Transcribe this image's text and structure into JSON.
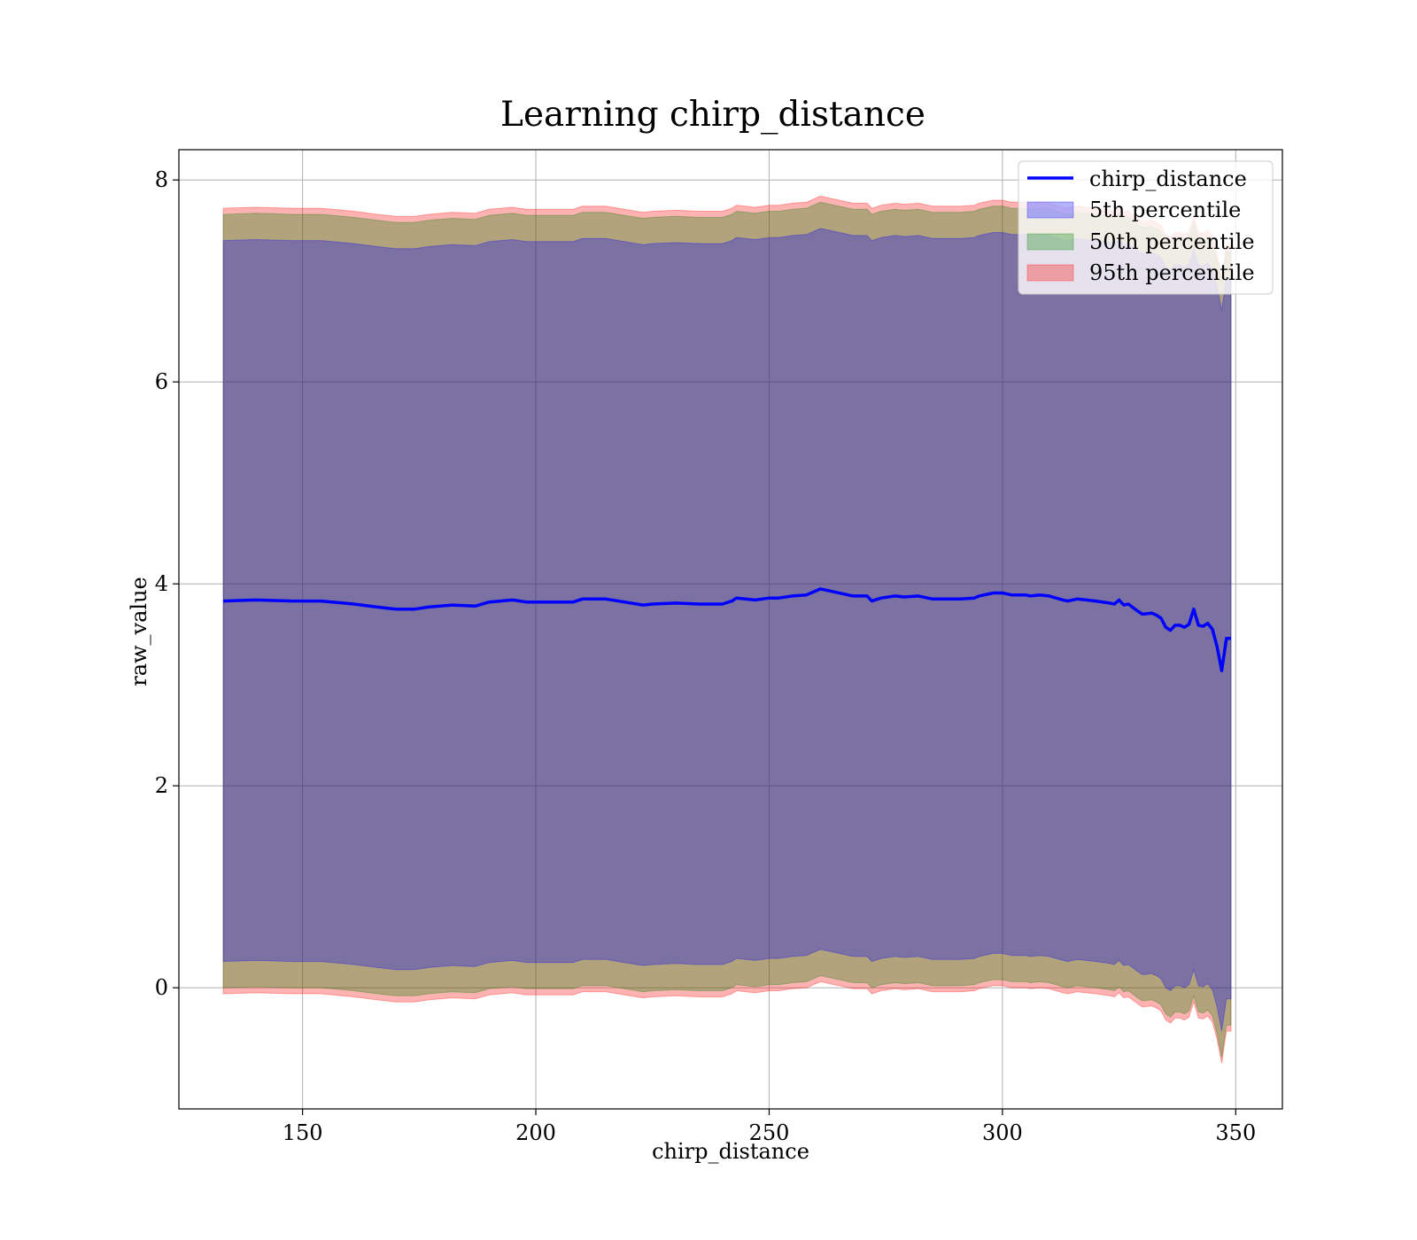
{
  "chart_data": {
    "type": "area",
    "title": "Learning chirp_distance",
    "xlabel": "chirp_distance",
    "ylabel": "raw_value",
    "xlim": [
      123.5,
      360
    ],
    "ylim": [
      -1.2,
      8.3
    ],
    "xticks": [
      150,
      200,
      250,
      300,
      350
    ],
    "yticks": [
      0,
      2,
      4,
      6,
      8
    ],
    "xtick_labels": [
      "150",
      "200",
      "250",
      "300",
      "350"
    ],
    "ytick_labels": [
      "0",
      "2",
      "4",
      "6",
      "8"
    ],
    "grid": true,
    "legend_position": "top-right",
    "x": [
      133,
      140,
      148,
      154,
      161,
      166,
      170,
      174,
      177,
      182,
      187,
      190,
      195,
      198,
      203,
      208,
      210,
      215,
      219,
      223,
      225,
      230,
      235,
      240,
      242,
      243,
      247,
      250,
      252,
      255,
      258,
      261,
      264,
      268,
      271,
      272,
      274,
      277,
      279,
      282,
      285,
      288,
      291,
      294,
      295,
      298,
      300,
      302,
      305,
      306,
      308,
      310,
      313,
      314,
      316,
      318,
      320,
      323,
      324,
      325,
      326,
      327,
      329,
      330,
      332,
      333,
      334,
      335,
      336,
      337,
      338,
      339,
      340,
      341,
      342,
      343,
      344,
      345,
      346,
      347,
      348,
      349
    ],
    "series": [
      {
        "name": "chirp_distance",
        "values": [
          3.83,
          3.84,
          3.83,
          3.83,
          3.8,
          3.77,
          3.75,
          3.75,
          3.77,
          3.79,
          3.78,
          3.82,
          3.84,
          3.82,
          3.82,
          3.82,
          3.85,
          3.85,
          3.82,
          3.79,
          3.8,
          3.81,
          3.8,
          3.8,
          3.83,
          3.86,
          3.84,
          3.86,
          3.86,
          3.88,
          3.89,
          3.95,
          3.92,
          3.88,
          3.88,
          3.83,
          3.86,
          3.88,
          3.87,
          3.88,
          3.85,
          3.85,
          3.85,
          3.86,
          3.88,
          3.91,
          3.91,
          3.89,
          3.89,
          3.88,
          3.89,
          3.88,
          3.84,
          3.83,
          3.85,
          3.84,
          3.83,
          3.81,
          3.8,
          3.84,
          3.79,
          3.8,
          3.73,
          3.7,
          3.71,
          3.69,
          3.66,
          3.57,
          3.54,
          3.59,
          3.59,
          3.57,
          3.6,
          3.75,
          3.59,
          3.58,
          3.61,
          3.55,
          3.38,
          3.14,
          3.46,
          3.46
        ]
      }
    ],
    "bands": [
      {
        "name": "5th percentile",
        "color": "#0000ff",
        "lower": [
          0.26,
          0.27,
          0.26,
          0.26,
          0.23,
          0.2,
          0.18,
          0.18,
          0.2,
          0.22,
          0.21,
          0.25,
          0.27,
          0.25,
          0.25,
          0.25,
          0.28,
          0.28,
          0.25,
          0.22,
          0.23,
          0.24,
          0.23,
          0.23,
          0.26,
          0.29,
          0.27,
          0.29,
          0.29,
          0.31,
          0.32,
          0.38,
          0.35,
          0.31,
          0.31,
          0.26,
          0.29,
          0.31,
          0.3,
          0.31,
          0.28,
          0.28,
          0.28,
          0.29,
          0.31,
          0.34,
          0.34,
          0.32,
          0.32,
          0.31,
          0.32,
          0.31,
          0.27,
          0.26,
          0.28,
          0.27,
          0.26,
          0.24,
          0.23,
          0.27,
          0.22,
          0.23,
          0.16,
          0.13,
          0.14,
          0.12,
          0.09,
          0.0,
          -0.03,
          0.02,
          0.02,
          0.0,
          0.03,
          0.18,
          0.02,
          0.01,
          0.04,
          -0.02,
          -0.19,
          -0.43,
          -0.11,
          -0.11
        ],
        "upper": [
          7.4,
          7.41,
          7.4,
          7.4,
          7.37,
          7.34,
          7.32,
          7.32,
          7.34,
          7.36,
          7.35,
          7.39,
          7.41,
          7.39,
          7.39,
          7.39,
          7.42,
          7.42,
          7.39,
          7.36,
          7.37,
          7.38,
          7.37,
          7.37,
          7.4,
          7.43,
          7.41,
          7.43,
          7.43,
          7.45,
          7.46,
          7.52,
          7.49,
          7.45,
          7.45,
          7.4,
          7.43,
          7.45,
          7.44,
          7.45,
          7.42,
          7.42,
          7.42,
          7.43,
          7.45,
          7.48,
          7.48,
          7.46,
          7.46,
          7.45,
          7.46,
          7.45,
          7.41,
          7.4,
          7.42,
          7.41,
          7.4,
          7.38,
          7.37,
          7.41,
          7.36,
          7.37,
          7.3,
          7.27,
          7.28,
          7.26,
          7.23,
          7.14,
          7.11,
          7.16,
          7.16,
          7.14,
          7.17,
          7.32,
          7.16,
          7.15,
          7.18,
          7.12,
          6.95,
          6.71,
          7.03,
          7.03
        ]
      },
      {
        "name": "50th percentile",
        "color": "#008000",
        "lower": [
          0.0,
          0.01,
          0.0,
          0.0,
          -0.03,
          -0.06,
          -0.08,
          -0.08,
          -0.06,
          -0.04,
          -0.05,
          -0.01,
          0.01,
          -0.01,
          -0.01,
          -0.01,
          0.02,
          0.02,
          -0.01,
          -0.04,
          -0.03,
          -0.02,
          -0.03,
          -0.03,
          0.0,
          0.03,
          0.01,
          0.03,
          0.03,
          0.05,
          0.06,
          0.12,
          0.09,
          0.05,
          0.05,
          0.0,
          0.03,
          0.05,
          0.04,
          0.05,
          0.02,
          0.02,
          0.02,
          0.03,
          0.05,
          0.08,
          0.08,
          0.06,
          0.06,
          0.05,
          0.06,
          0.05,
          0.01,
          0.0,
          0.02,
          0.01,
          0.0,
          -0.02,
          -0.03,
          0.01,
          -0.04,
          -0.03,
          -0.1,
          -0.13,
          -0.12,
          -0.14,
          -0.17,
          -0.26,
          -0.29,
          -0.24,
          -0.24,
          -0.26,
          -0.23,
          -0.08,
          -0.24,
          -0.25,
          -0.22,
          -0.28,
          -0.45,
          -0.69,
          -0.37,
          -0.37
        ],
        "upper": [
          7.66,
          7.67,
          7.66,
          7.66,
          7.63,
          7.6,
          7.58,
          7.58,
          7.6,
          7.62,
          7.61,
          7.65,
          7.67,
          7.65,
          7.65,
          7.65,
          7.68,
          7.68,
          7.65,
          7.62,
          7.63,
          7.64,
          7.63,
          7.63,
          7.66,
          7.69,
          7.67,
          7.69,
          7.69,
          7.71,
          7.72,
          7.78,
          7.75,
          7.71,
          7.71,
          7.66,
          7.69,
          7.71,
          7.7,
          7.71,
          7.68,
          7.68,
          7.68,
          7.69,
          7.71,
          7.74,
          7.74,
          7.72,
          7.72,
          7.71,
          7.72,
          7.71,
          7.67,
          7.66,
          7.68,
          7.67,
          7.66,
          7.64,
          7.63,
          7.67,
          7.62,
          7.63,
          7.56,
          7.53,
          7.54,
          7.52,
          7.49,
          7.4,
          7.37,
          7.42,
          7.42,
          7.4,
          7.43,
          7.58,
          7.42,
          7.41,
          7.44,
          7.38,
          7.21,
          6.97,
          7.29,
          7.29
        ]
      },
      {
        "name": "95th percentile",
        "color": "#ff0000",
        "lower": [
          -0.06,
          -0.05,
          -0.06,
          -0.06,
          -0.09,
          -0.12,
          -0.14,
          -0.14,
          -0.12,
          -0.1,
          -0.11,
          -0.07,
          -0.05,
          -0.07,
          -0.07,
          -0.07,
          -0.04,
          -0.04,
          -0.07,
          -0.1,
          -0.09,
          -0.08,
          -0.09,
          -0.09,
          -0.06,
          -0.03,
          -0.05,
          -0.03,
          -0.03,
          -0.01,
          0.0,
          0.06,
          0.03,
          -0.01,
          -0.01,
          -0.06,
          -0.03,
          -0.01,
          -0.02,
          -0.01,
          -0.04,
          -0.04,
          -0.04,
          -0.03,
          -0.01,
          0.02,
          0.02,
          0.0,
          0.0,
          -0.01,
          0.0,
          -0.01,
          -0.05,
          -0.06,
          -0.04,
          -0.05,
          -0.06,
          -0.08,
          -0.09,
          -0.05,
          -0.1,
          -0.09,
          -0.16,
          -0.19,
          -0.18,
          -0.2,
          -0.23,
          -0.32,
          -0.35,
          -0.3,
          -0.3,
          -0.32,
          -0.29,
          -0.14,
          -0.3,
          -0.31,
          -0.28,
          -0.34,
          -0.51,
          -0.75,
          -0.43,
          -0.43
        ],
        "upper": [
          7.72,
          7.73,
          7.72,
          7.72,
          7.69,
          7.66,
          7.64,
          7.64,
          7.66,
          7.68,
          7.67,
          7.71,
          7.73,
          7.71,
          7.71,
          7.71,
          7.74,
          7.74,
          7.71,
          7.68,
          7.69,
          7.7,
          7.69,
          7.69,
          7.72,
          7.75,
          7.73,
          7.75,
          7.75,
          7.77,
          7.78,
          7.84,
          7.81,
          7.77,
          7.77,
          7.72,
          7.75,
          7.77,
          7.76,
          7.77,
          7.74,
          7.74,
          7.74,
          7.75,
          7.77,
          7.8,
          7.8,
          7.78,
          7.78,
          7.77,
          7.78,
          7.77,
          7.73,
          7.72,
          7.74,
          7.73,
          7.72,
          7.7,
          7.69,
          7.73,
          7.68,
          7.69,
          7.62,
          7.59,
          7.6,
          7.58,
          7.55,
          7.46,
          7.43,
          7.48,
          7.48,
          7.46,
          7.49,
          7.64,
          7.48,
          7.47,
          7.5,
          7.44,
          7.27,
          7.03,
          7.35,
          7.35
        ]
      }
    ],
    "line_color": "#0000ff",
    "legend": [
      "chirp_distance",
      "5th percentile",
      "50th percentile",
      "95th percentile"
    ]
  }
}
